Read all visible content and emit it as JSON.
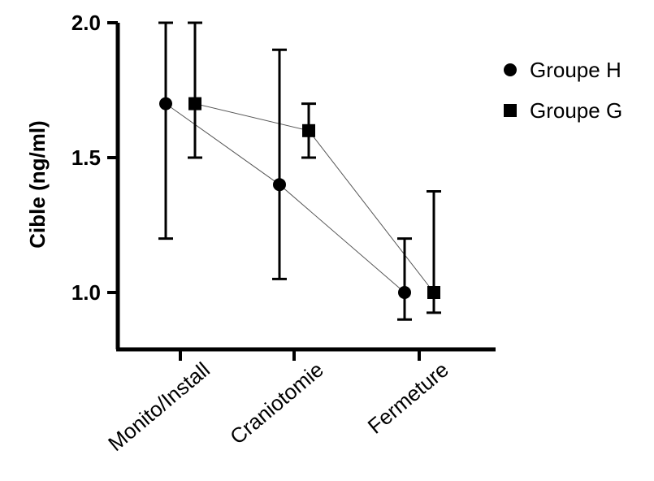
{
  "chart_data": {
    "type": "scatter",
    "ylabel": "Cible (ng/ml)",
    "xlabel": "",
    "categories": [
      "Monito/Install",
      "Craniotomie",
      "Fermeture"
    ],
    "ylim": [
      0.8,
      2.0
    ],
    "yticks": [
      "1.0",
      "1.5",
      "2.0"
    ],
    "legend_position": "right",
    "series": [
      {
        "name": "Groupe H",
        "marker": "circle",
        "values": [
          1.7,
          1.4,
          1.0
        ],
        "err_low": [
          1.2,
          1.05,
          0.9
        ],
        "err_high": [
          2.0,
          1.9,
          1.2
        ]
      },
      {
        "name": "Groupe G",
        "marker": "square",
        "values": [
          1.7,
          1.6,
          1.0
        ],
        "err_low": [
          1.5,
          1.5,
          0.925
        ],
        "err_high": [
          2.0,
          1.7,
          1.375
        ]
      }
    ],
    "colors": {
      "marks": "#000000",
      "connector": "#555555"
    }
  }
}
